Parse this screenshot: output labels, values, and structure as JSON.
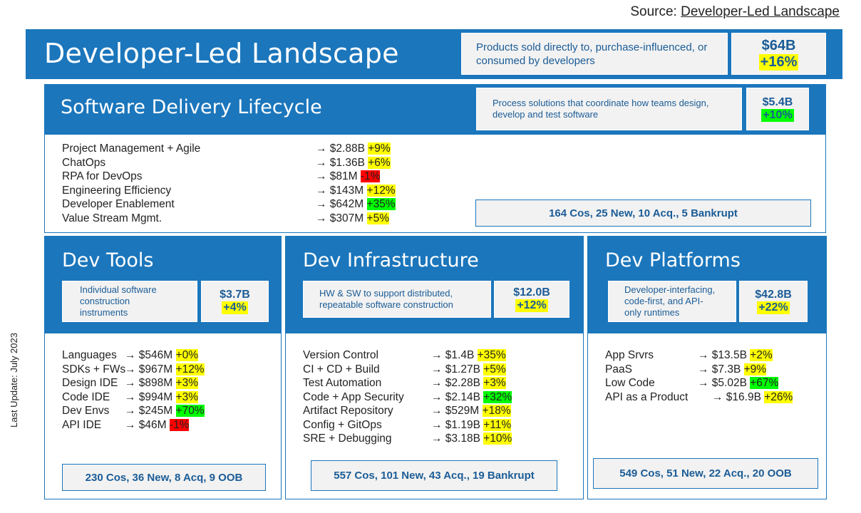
{
  "source": {
    "prefix": "Source: ",
    "link": "Developer-Led Landscape"
  },
  "header": {
    "title": "Developer-Led Landscape",
    "description": "Products sold directly to, purchase-influenced, or consumed by developers",
    "value": "$64B",
    "growth": "+16%"
  },
  "sdl": {
    "title": "Software Delivery Lifecycle",
    "description": "Process solutions that coordinate how teams design, develop and test software",
    "value": "$5.4B",
    "growth": "+10%",
    "items": [
      {
        "name": "Project Management + Agile",
        "value": "→ $2.88B",
        "pct": "+9%"
      },
      {
        "name": "ChatOps",
        "value": "→ $1.36B",
        "pct": "+6%"
      },
      {
        "name": "RPA for DevOps",
        "value": "→ $81M",
        "pct": "-1%"
      },
      {
        "name": "Engineering Efficiency",
        "value": "→ $143M",
        "pct": "+12%"
      },
      {
        "name": "Developer Enablement",
        "value": "→ $642M",
        "pct": "+35%"
      },
      {
        "name": "Value Stream Mgmt.",
        "value": "→ $307M",
        "pct": "+5%"
      }
    ],
    "stats": "164 Cos, 25 New, 10 Acq., 5 Bankrupt"
  },
  "dev_tools": {
    "title": "Dev Tools",
    "description": "Individual software construction instruments",
    "value": "$3.7B",
    "growth": "+4%",
    "items": [
      {
        "name": "Languages",
        "value": "→ $546M",
        "pct": "+0%"
      },
      {
        "name": "SDKs + FWs",
        "value": "→ $967M",
        "pct": "+12%"
      },
      {
        "name": "Design IDE",
        "value": "→ $898M",
        "pct": "+3%"
      },
      {
        "name": "Code IDE",
        "value": "→ $994M",
        "pct": "+3%"
      },
      {
        "name": "Dev Envs",
        "value": "→ $245M",
        "pct": "+70%"
      },
      {
        "name": "API IDE",
        "value": "→ $46M",
        "pct": "-1%"
      }
    ],
    "stats": "230 Cos, 36 New, 8 Acq, 9 OOB"
  },
  "dev_infra": {
    "title": "Dev Infrastructure",
    "description": "HW & SW to support distributed, repeatable software construction",
    "value": "$12.0B",
    "growth": "+12%",
    "items": [
      {
        "name": "Version Control",
        "value": "→ $1.4B",
        "pct": "+35%"
      },
      {
        "name": "CI + CD + Build",
        "value": "→ $1.27B",
        "pct": "+5%"
      },
      {
        "name": "Test Automation",
        "value": "→ $2.28B",
        "pct": "+3%"
      },
      {
        "name": "Code + App Security",
        "value": "→ $2.14B",
        "pct": "+32%"
      },
      {
        "name": "Artifact Repository",
        "value": "→ $529M",
        "pct": "+18%"
      },
      {
        "name": "Config + GitOps",
        "value": "→ $1.19B",
        "pct": "+11%"
      },
      {
        "name": "SRE + Debugging",
        "value": "→ $3.18B",
        "pct": "+10%"
      }
    ],
    "stats": "557 Cos, 101 New, 43 Acq., 19 Bankrupt"
  },
  "dev_platforms": {
    "title": "Dev Platforms",
    "description": "Developer-interfacing, code-first, and API-only runtimes",
    "value": "$42.8B",
    "growth": "+22%",
    "items": [
      {
        "name": "App Srvrs",
        "value": "→ $13.5B",
        "pct": "+2%"
      },
      {
        "name": "PaaS",
        "value": "→ $7.3B",
        "pct": "+9%"
      },
      {
        "name": "Low Code",
        "value": "→ $5.02B",
        "pct": "+67%"
      },
      {
        "name": "API as a Product",
        "value": "→ $16.9B",
        "pct": "+26%"
      }
    ],
    "stats": "549 Cos, 51 New, 22 Acq., 20 OOB"
  },
  "footer": {
    "last_update": "Last Update: July 2023"
  },
  "colors": {
    "brand_blue": "#1b76bc",
    "highlight_yellow": "#ffff00",
    "highlight_green": "#00ff00",
    "highlight_red": "#ff0000"
  }
}
